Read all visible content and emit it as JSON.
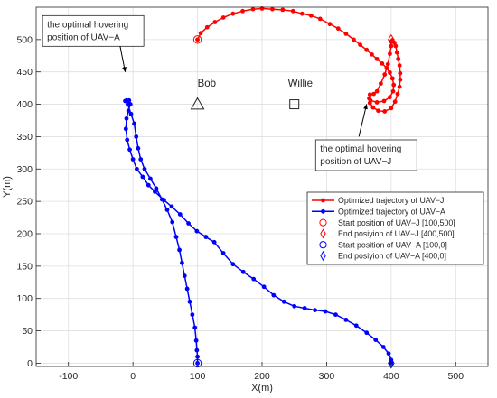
{
  "chart_data": {
    "type": "line",
    "title": "",
    "xlabel": "X(m)",
    "ylabel": "Y(m)",
    "xlim": [
      -150,
      550
    ],
    "ylim": [
      -5,
      550
    ],
    "xticks": [
      -100,
      0,
      100,
      200,
      300,
      400,
      500
    ],
    "yticks": [
      0,
      50,
      100,
      150,
      200,
      250,
      300,
      350,
      400,
      450,
      500
    ],
    "grid": true,
    "legend_position": "lower-right",
    "colors": {
      "red": "#ff0000",
      "blue": "#0000ff",
      "grid": "#dfdfdf",
      "axis": "#262626"
    },
    "series": [
      {
        "name": "Optimized trajectory of UAV−J",
        "color": "#ff0000",
        "marker": "dot",
        "points": [
          [
            100,
            500
          ],
          [
            105,
            510
          ],
          [
            115,
            519
          ],
          [
            127,
            527
          ],
          [
            140,
            534
          ],
          [
            155,
            540
          ],
          [
            170,
            544
          ],
          [
            186,
            547
          ],
          [
            200,
            548
          ],
          [
            216,
            547
          ],
          [
            232,
            546
          ],
          [
            248,
            544
          ],
          [
            262,
            540
          ],
          [
            276,
            537
          ],
          [
            290,
            532
          ],
          [
            305,
            524
          ],
          [
            318,
            517
          ],
          [
            330,
            509
          ],
          [
            342,
            500
          ],
          [
            352,
            492
          ],
          [
            362,
            484
          ],
          [
            370,
            477
          ],
          [
            378,
            470
          ],
          [
            386,
            463
          ],
          [
            393,
            456
          ],
          [
            398,
            449
          ],
          [
            402,
            440
          ],
          [
            404,
            430
          ],
          [
            403,
            420
          ],
          [
            398,
            411
          ],
          [
            389,
            405
          ],
          [
            378,
            403
          ],
          [
            368,
            406
          ],
          [
            367,
            415
          ],
          [
            373,
            416
          ],
          [
            378,
            420
          ],
          [
            384,
            432
          ],
          [
            390,
            446
          ],
          [
            395,
            462
          ],
          [
            398,
            478
          ],
          [
            400,
            490
          ],
          [
            400,
            497
          ],
          [
            402,
            499
          ],
          [
            405,
            495
          ],
          [
            407,
            490
          ],
          [
            409,
            480
          ],
          [
            411,
            470
          ],
          [
            413,
            460
          ],
          [
            414,
            448
          ],
          [
            414,
            438
          ],
          [
            413,
            427
          ],
          [
            410,
            416
          ],
          [
            406,
            404
          ],
          [
            400,
            394
          ],
          [
            390,
            389
          ],
          [
            380,
            390
          ],
          [
            372,
            395
          ],
          [
            367,
            402
          ],
          [
            366,
            409
          ]
        ]
      },
      {
        "name": "Optimized trajectory of UAV−A",
        "color": "#0000ff",
        "marker": "dot",
        "points": [
          [
            100,
            0
          ],
          [
            100,
            10
          ],
          [
            99,
            20
          ],
          [
            98,
            35
          ],
          [
            96,
            55
          ],
          [
            92,
            75
          ],
          [
            88,
            95
          ],
          [
            84,
            115
          ],
          [
            80,
            135
          ],
          [
            76,
            155
          ],
          [
            72,
            175
          ],
          [
            67,
            195
          ],
          [
            61,
            218
          ],
          [
            53,
            237
          ],
          [
            45,
            253
          ],
          [
            36,
            270
          ],
          [
            27,
            285
          ],
          [
            18,
            300
          ],
          [
            12,
            315
          ],
          [
            8,
            332
          ],
          [
            5,
            350
          ],
          [
            2,
            370
          ],
          [
            -3,
            385
          ],
          [
            -8,
            400
          ],
          [
            -12,
            405
          ],
          [
            -10,
            406
          ],
          [
            -6,
            406
          ],
          [
            -4,
            400
          ],
          [
            -7,
            390
          ],
          [
            -10,
            378
          ],
          [
            -11,
            362
          ],
          [
            -9,
            345
          ],
          [
            -5,
            330
          ],
          [
            0,
            315
          ],
          [
            6,
            300
          ],
          [
            15,
            288
          ],
          [
            24,
            275
          ],
          [
            34,
            265
          ],
          [
            48,
            252
          ],
          [
            60,
            242
          ],
          [
            73,
            230
          ],
          [
            86,
            216
          ],
          [
            99,
            204
          ],
          [
            113,
            195
          ],
          [
            126,
            187
          ],
          [
            140,
            170
          ],
          [
            155,
            153
          ],
          [
            171,
            141
          ],
          [
            187,
            130
          ],
          [
            203,
            118
          ],
          [
            218,
            105
          ],
          [
            234,
            95
          ],
          [
            250,
            88
          ],
          [
            266,
            85
          ],
          [
            282,
            82
          ],
          [
            298,
            80
          ],
          [
            314,
            75
          ],
          [
            330,
            67
          ],
          [
            346,
            58
          ],
          [
            362,
            47
          ],
          [
            376,
            36
          ],
          [
            388,
            25
          ],
          [
            396,
            15
          ],
          [
            400,
            5
          ],
          [
            400,
            0
          ]
        ]
      }
    ],
    "markers": [
      {
        "name": "Start position of UAV−J [100,500]",
        "shape": "circle",
        "color": "#ff0000",
        "x": 100,
        "y": 500
      },
      {
        "name": "End posiyion of UAV−J [400,500]",
        "shape": "diamond",
        "color": "#ff0000",
        "x": 400,
        "y": 500
      },
      {
        "name": "Start position of UAV−A [100,0]",
        "shape": "circle",
        "color": "#0000ff",
        "x": 100,
        "y": 0
      },
      {
        "name": "End posiyion of UAV−A [400,0]",
        "shape": "diamond",
        "color": "#0000ff",
        "x": 400,
        "y": 0
      }
    ],
    "landmarks": [
      {
        "label": "Bob",
        "shape": "triangle",
        "x": 100,
        "y": 400,
        "label_x": 100,
        "label_y": 427
      },
      {
        "label": "Willie",
        "shape": "square",
        "x": 250,
        "y": 400,
        "label_x": 240,
        "label_y": 427
      }
    ],
    "annotations": [
      {
        "lines": [
          "the optimal hovering",
          "position of UAV−A"
        ],
        "box_x": -140,
        "box_y": 537,
        "arrow_from": [
          -20,
          490
        ],
        "arrow_to": [
          -12,
          450
        ]
      },
      {
        "lines": [
          "the optimal hovering",
          "position of UAV−J"
        ],
        "box_x": 283,
        "box_y": 345,
        "arrow_from": [
          350,
          350
        ],
        "arrow_to": [
          362,
          400
        ]
      }
    ]
  }
}
